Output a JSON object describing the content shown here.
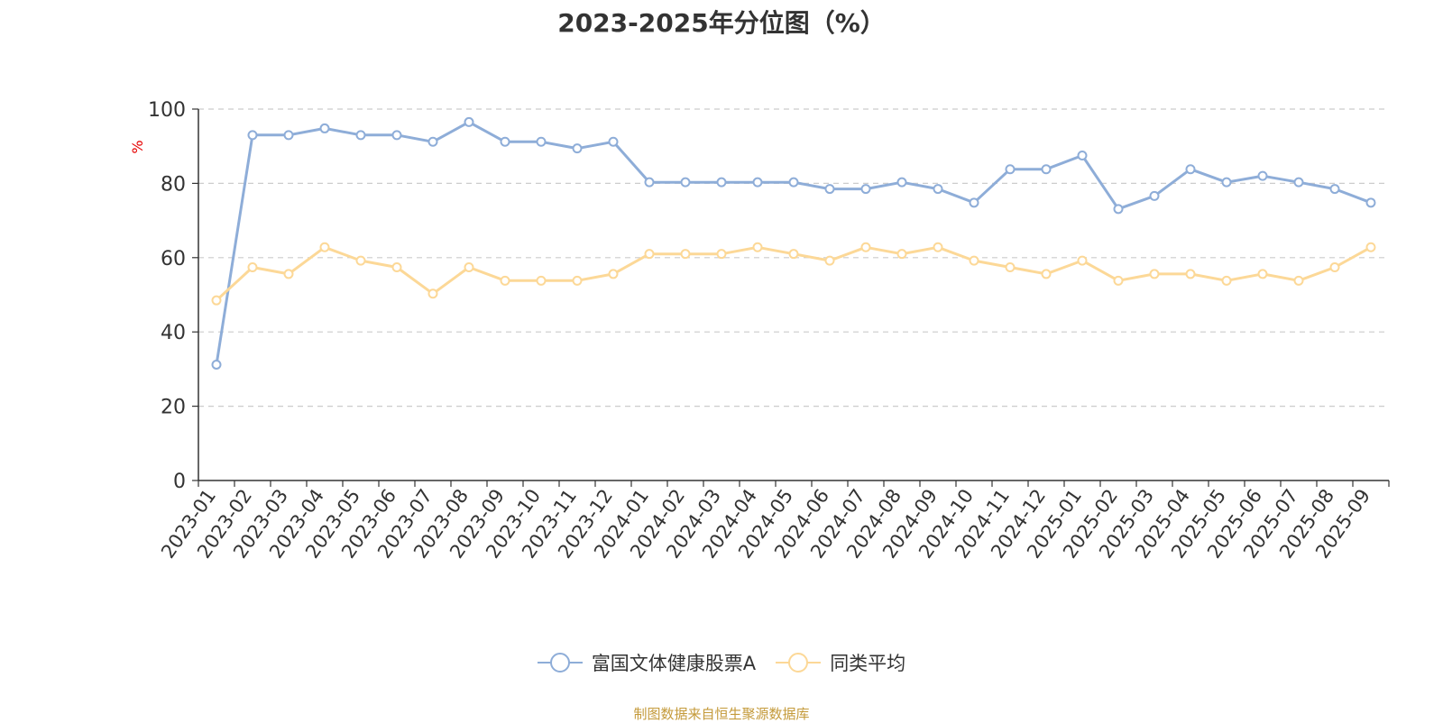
{
  "chart_data": {
    "type": "line",
    "title": "2023-2025年分位图（%）",
    "ylabel": "%",
    "xlabel": "",
    "ylim": [
      0,
      100
    ],
    "yticks": [
      0,
      20,
      40,
      60,
      80,
      100
    ],
    "grid": true,
    "legend_position": "bottom-center",
    "categories": [
      "2023-01",
      "2023-02",
      "2023-03",
      "2023-04",
      "2023-05",
      "2023-06",
      "2023-07",
      "2023-08",
      "2023-09",
      "2023-10",
      "2023-11",
      "2023-12",
      "2024-01",
      "2024-02",
      "2024-03",
      "2024-04",
      "2024-05",
      "2024-06",
      "2024-07",
      "2024-08",
      "2024-09",
      "2024-10",
      "2024-11",
      "2024-12",
      "2025-01",
      "2025-02",
      "2025-03",
      "2025-04",
      "2025-05",
      "2025-06",
      "2025-07",
      "2025-08",
      "2025-09"
    ],
    "series": [
      {
        "name": "富国文体健康股票A",
        "color": "#8eadd8",
        "values": [
          31.2,
          93.0,
          93.0,
          94.8,
          93.0,
          93.0,
          91.2,
          96.5,
          91.2,
          91.2,
          89.4,
          91.2,
          80.3,
          80.3,
          80.3,
          80.3,
          80.3,
          78.5,
          78.5,
          80.3,
          78.5,
          74.8,
          83.8,
          83.8,
          87.5,
          73.1,
          76.6,
          83.8,
          80.3,
          82.0,
          80.3,
          78.5,
          74.8
        ]
      },
      {
        "name": "同类平均",
        "color": "#fcd897",
        "values": [
          48.5,
          57.4,
          55.6,
          62.8,
          59.2,
          57.4,
          50.3,
          57.4,
          53.8,
          53.8,
          53.8,
          55.6,
          61.0,
          61.0,
          61.0,
          62.8,
          61.0,
          59.2,
          62.8,
          61.0,
          62.8,
          59.2,
          57.4,
          55.6,
          59.2,
          53.8,
          55.6,
          55.6,
          53.8,
          55.6,
          53.8,
          57.4,
          62.8
        ]
      }
    ]
  },
  "source_note": "制图数据来自恒生聚源数据库"
}
